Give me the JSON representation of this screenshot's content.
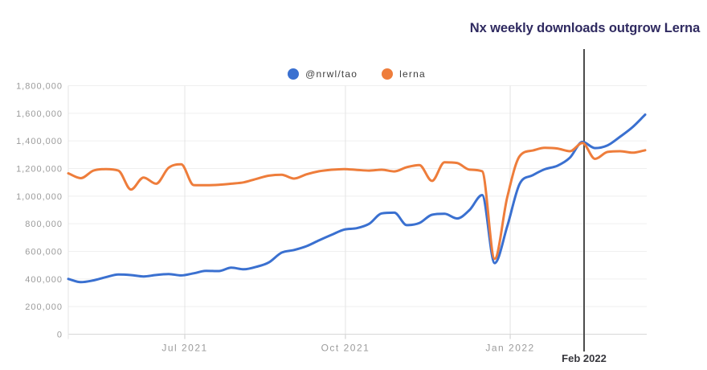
{
  "chart_data": {
    "type": "line",
    "title": "Nx weekly downloads outgrow Lerna",
    "x_unit": "week",
    "n_points": 47,
    "x_axis": {
      "ticks": [
        {
          "label": "Jul 2021",
          "week": 9.29
        },
        {
          "label": "Oct 2021",
          "week": 22.1
        },
        {
          "label": "Jan 2022",
          "week": 35.24
        }
      ]
    },
    "y_axis": {
      "min": 0,
      "max": 1800000,
      "tick_step": 200000
    },
    "ylim": [
      0,
      1800000
    ],
    "grid": true,
    "legend_position": "top-center",
    "annotation": {
      "label": "Feb 2022",
      "week": 41.13,
      "line_color": "#4c4c4c",
      "label_color": "#37373d"
    },
    "series": [
      {
        "name": "@nrwl/tao",
        "color": "#3a70d0",
        "values": [
          400000,
          377000,
          390000,
          413000,
          432000,
          428000,
          418000,
          429000,
          436000,
          426000,
          441000,
          459000,
          457000,
          482000,
          470000,
          488000,
          520000,
          590000,
          610000,
          638000,
          680000,
          720000,
          758000,
          768000,
          800000,
          875000,
          880000,
          790000,
          805000,
          865000,
          872000,
          838000,
          900000,
          1008000,
          515000,
          780000,
          1090000,
          1150000,
          1195000,
          1220000,
          1278000,
          1393000,
          1348000,
          1368000,
          1430000,
          1500000,
          1590000
        ]
      },
      {
        "name": "lerna",
        "color": "#ee7d3b",
        "values": [
          1165000,
          1130000,
          1185000,
          1196000,
          1185000,
          1048000,
          1135000,
          1090000,
          1205000,
          1230000,
          1080000,
          1079000,
          1082000,
          1090000,
          1100000,
          1125000,
          1148000,
          1155000,
          1127000,
          1158000,
          1180000,
          1191000,
          1196000,
          1190000,
          1185000,
          1191000,
          1179000,
          1210000,
          1225000,
          1110000,
          1245000,
          1240000,
          1192000,
          1180000,
          545000,
          990000,
          1290000,
          1330000,
          1350000,
          1345000,
          1325000,
          1385000,
          1270000,
          1320000,
          1325000,
          1315000,
          1332000
        ]
      }
    ],
    "style": {
      "title_color": "#2f2a60",
      "axis_label_color": "#9b9b9b",
      "h_grid_color": "#efefef",
      "v_grid_color": "#e4e4e4",
      "axis_line_color": "#d8d8d8",
      "tick_color": "#cccccc",
      "background": "#ffffff"
    }
  }
}
